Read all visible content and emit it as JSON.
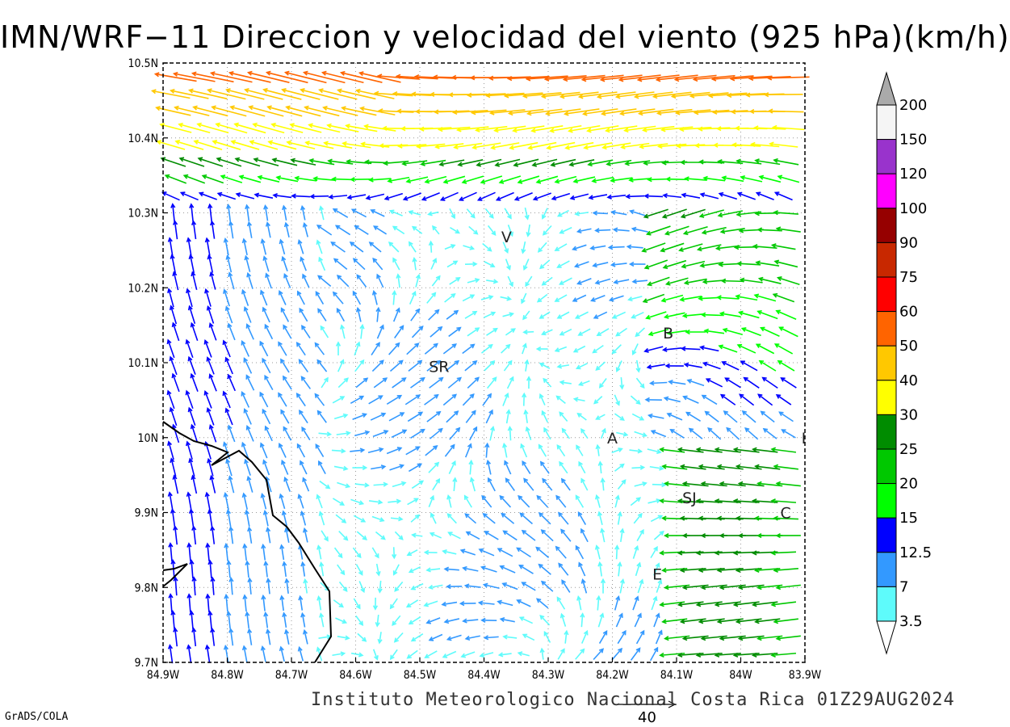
{
  "title": "IMN/WRF−11 Direccion y velocidad del viento (925 hPa)(km/h)",
  "footer": {
    "credit": "Instituto Meteorologico Nacional Costa Rica 01Z29AUG2024",
    "software": "GrADS/COLA",
    "reference_vector_value": "40"
  },
  "map": {
    "lon_range": [
      -84.9,
      -83.9
    ],
    "lat_range": [
      9.7,
      10.5
    ],
    "lon_ticks": [
      {
        "value": -84.9,
        "label": "84.9W"
      },
      {
        "value": -84.8,
        "label": "84.8W"
      },
      {
        "value": -84.7,
        "label": "84.7W"
      },
      {
        "value": -84.6,
        "label": "84.6W"
      },
      {
        "value": -84.5,
        "label": "84.5W"
      },
      {
        "value": -84.4,
        "label": "84.4W"
      },
      {
        "value": -84.3,
        "label": "84.3W"
      },
      {
        "value": -84.2,
        "label": "84.2W"
      },
      {
        "value": -84.1,
        "label": "84.1W"
      },
      {
        "value": -84.0,
        "label": "84W"
      },
      {
        "value": -83.9,
        "label": "83.9W"
      }
    ],
    "lat_ticks": [
      {
        "value": 10.5,
        "label": "10.5N"
      },
      {
        "value": 10.4,
        "label": "10.4N"
      },
      {
        "value": 10.3,
        "label": "10.3N"
      },
      {
        "value": 10.2,
        "label": "10.2N"
      },
      {
        "value": 10.1,
        "label": "10.1N"
      },
      {
        "value": 10.0,
        "label": "10N"
      },
      {
        "value": 9.9,
        "label": "9.9N"
      },
      {
        "value": 9.8,
        "label": "9.8N"
      },
      {
        "value": 9.7,
        "label": "9.7N"
      }
    ],
    "grid": true,
    "cities": [
      {
        "code": "V",
        "lon": -84.365,
        "lat": 10.268
      },
      {
        "code": "B",
        "lon": -84.113,
        "lat": 10.14
      },
      {
        "code": "SR",
        "lon": -84.47,
        "lat": 10.095
      },
      {
        "code": "A",
        "lon": -84.2,
        "lat": 10.0
      },
      {
        "code": "I",
        "lon": -83.902,
        "lat": 10.0
      },
      {
        "code": "SJ",
        "lon": -84.08,
        "lat": 9.92
      },
      {
        "code": "C",
        "lon": -83.93,
        "lat": 9.9
      },
      {
        "code": "E",
        "lon": -84.13,
        "lat": 9.818
      }
    ]
  },
  "colorbar": {
    "colors": [
      "#5efbfb",
      "#3399ff",
      "#0000ff",
      "#00ff00",
      "#00c800",
      "#008c00",
      "#ffff00",
      "#ffc800",
      "#ff6400",
      "#ff0000",
      "#c82800",
      "#960000",
      "#ff00ff",
      "#9933cc",
      "#f5f5f5"
    ],
    "labels": [
      "3.5",
      "7",
      "12.5",
      "15",
      "20",
      "25",
      "30",
      "40",
      "50",
      "60",
      "75",
      "90",
      "100",
      "120",
      "150",
      "200"
    ],
    "over_color": "#aaaaaa"
  }
}
